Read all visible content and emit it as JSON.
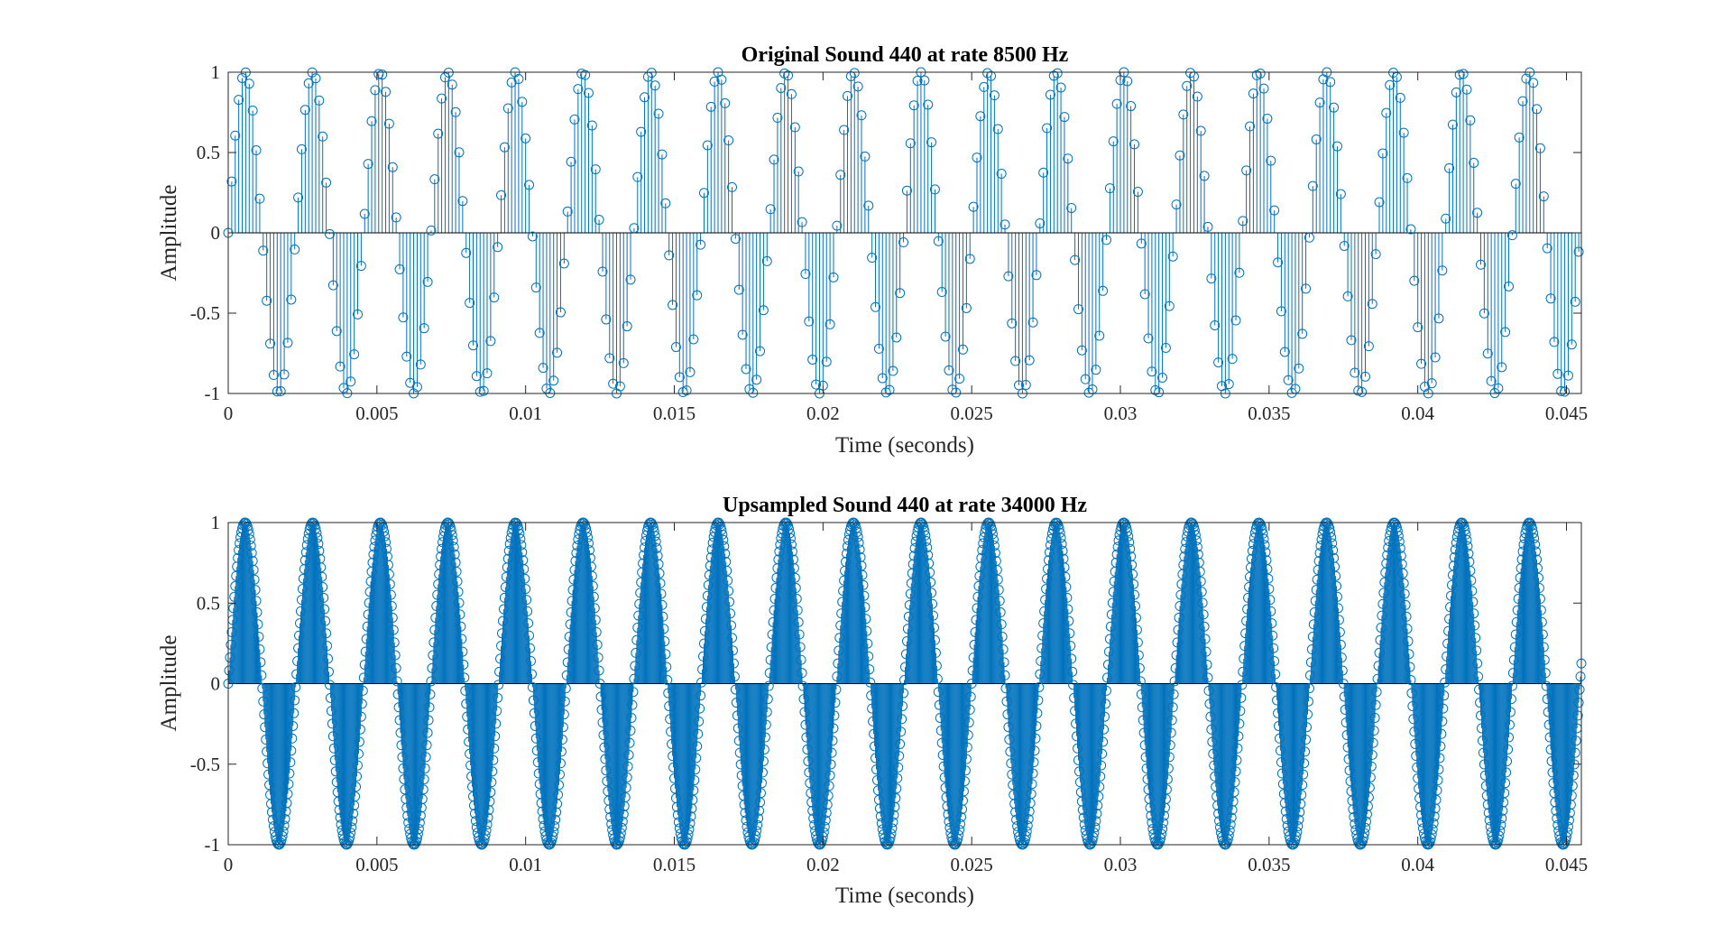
{
  "chart_data": [
    {
      "type": "stem",
      "title": "Original Sound 440 at rate 8500 Hz",
      "xlabel": "Time (seconds)",
      "ylabel": "Amplitude",
      "xlim": [
        0,
        0.0455
      ],
      "ylim": [
        -1,
        1
      ],
      "xticks": [
        0,
        0.005,
        0.01,
        0.015,
        0.02,
        0.025,
        0.03,
        0.035,
        0.04,
        0.045
      ],
      "xtick_labels": [
        "0",
        "0.005",
        "0.01",
        "0.015",
        "0.02",
        "0.025",
        "0.03",
        "0.035",
        "0.04",
        "0.045"
      ],
      "yticks": [
        -1,
        -0.5,
        0,
        0.5,
        1
      ],
      "ytick_labels": [
        "-1",
        "-0.5",
        "0",
        "0.5",
        "1"
      ],
      "signal": {
        "function": "sin",
        "frequency_hz": 440,
        "sample_rate_hz": 8500,
        "samples": 387,
        "amplitude": 1
      },
      "marker": "circle",
      "color": "#0072bd",
      "grid": false,
      "box": true
    },
    {
      "type": "stem",
      "title": "Upsampled Sound 440 at rate 34000 Hz",
      "xlabel": "Time (seconds)",
      "ylabel": "Amplitude",
      "xlim": [
        0,
        0.0455
      ],
      "ylim": [
        -1,
        1
      ],
      "xticks": [
        0,
        0.005,
        0.01,
        0.015,
        0.02,
        0.025,
        0.03,
        0.035,
        0.04,
        0.045
      ],
      "xtick_labels": [
        "0",
        "0.005",
        "0.01",
        "0.015",
        "0.02",
        "0.025",
        "0.03",
        "0.035",
        "0.04",
        "0.045"
      ],
      "yticks": [
        -1,
        -0.5,
        0,
        0.5,
        1
      ],
      "ytick_labels": [
        "-1",
        "-0.5",
        "0",
        "0.5",
        "1"
      ],
      "signal": {
        "function": "sin",
        "frequency_hz": 440,
        "sample_rate_hz": 34000,
        "samples": 1548,
        "amplitude": 1
      },
      "marker": "circle",
      "color": "#0072bd",
      "grid": false,
      "box": true
    }
  ]
}
